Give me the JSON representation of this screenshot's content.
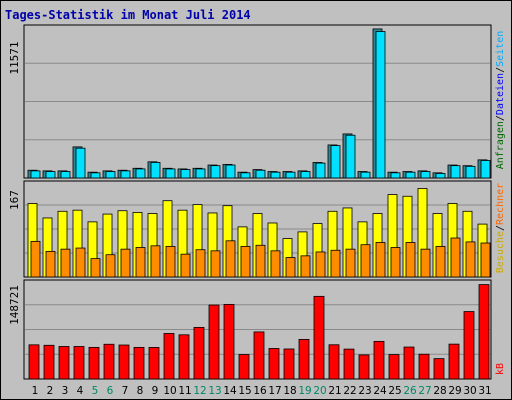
{
  "title": "Tages-Statistik im Monat Juli 2014",
  "colors": {
    "background": "#c0c0c0",
    "title_text": "#0000aa",
    "grid": "#8a8a8a",
    "anfragen": "#006600",
    "dateien": "#0000ff",
    "seiten": "#00aaff",
    "besuche": "#ccaa00",
    "rechner": "#ff6600",
    "kb": "#ff0000",
    "weekend_label": "#008866",
    "normal_label": "#000000",
    "bar_hits_back": "#2b8a95",
    "bar_files": "#00e0ff",
    "bar_visits": "#ffff00",
    "bar_sites": "#ff8c00",
    "bar_kb": "#ff0000"
  },
  "right_labels": {
    "top": [
      {
        "text": "Anfragen",
        "color_key": "anfragen"
      },
      {
        "text": "/",
        "color_key": "normal_label"
      },
      {
        "text": "Dateien",
        "color_key": "dateien"
      },
      {
        "text": "/",
        "color_key": "normal_label"
      },
      {
        "text": "Seiten",
        "color_key": "seiten"
      }
    ],
    "middle": [
      {
        "text": "Besuche",
        "color_key": "besuche"
      },
      {
        "text": "/",
        "color_key": "normal_label"
      },
      {
        "text": "Rechner",
        "color_key": "rechner"
      }
    ],
    "bottom": [
      {
        "text": "kB",
        "color_key": "kb"
      }
    ]
  },
  "chart_data": {
    "type": "bar",
    "title": "Tages-Statistik im Monat Juli 2014",
    "categories": [
      "1",
      "2",
      "3",
      "4",
      "5",
      "6",
      "7",
      "8",
      "9",
      "10",
      "11",
      "12",
      "13",
      "14",
      "15",
      "16",
      "17",
      "18",
      "19",
      "20",
      "21",
      "22",
      "23",
      "24",
      "25",
      "26",
      "27",
      "28",
      "29",
      "30",
      "31"
    ],
    "weekend_days": [
      "5",
      "6",
      "12",
      "13",
      "19",
      "20",
      "26",
      "27"
    ],
    "panels": [
      {
        "name": "hits",
        "ymax_label": "11571",
        "ylim": [
          0,
          11571
        ],
        "series": [
          {
            "name": "Anfragen",
            "values": [
              600,
              550,
              550,
              2400,
              450,
              550,
              600,
              750,
              1250,
              750,
              700,
              750,
              1000,
              1050,
              450,
              650,
              500,
              500,
              550,
              1200,
              2550,
              3400,
              500,
              11500,
              450,
              500,
              550,
              400,
              1000,
              950,
              1400
            ]
          },
          {
            "name": "Dateien",
            "values": [
              550,
              500,
              500,
              2300,
              400,
              500,
              550,
              700,
              1200,
              700,
              650,
              700,
              950,
              1000,
              400,
              600,
              450,
              450,
              500,
              1150,
              2500,
              3300,
              450,
              11300,
              400,
              450,
              500,
              350,
              950,
              900,
              1350
            ]
          }
        ]
      },
      {
        "name": "visits",
        "ymax_label": "167",
        "ylim": [
          0,
          167
        ],
        "series": [
          {
            "name": "Besuche",
            "values": [
              132,
              106,
              118,
              120,
              99,
              113,
              119,
              116,
              114,
              137,
              120,
              130,
              115,
              128,
              90,
              114,
              97,
              69,
              81,
              96,
              118,
              124,
              99,
              114,
              148,
              145,
              159,
              114,
              132,
              118,
              95
            ]
          },
          {
            "name": "Rechner",
            "values": [
              64,
              46,
              50,
              52,
              33,
              40,
              50,
              53,
              56,
              55,
              41,
              49,
              47,
              65,
              55,
              57,
              47,
              35,
              38,
              45,
              48,
              50,
              58,
              62,
              53,
              62,
              50,
              55,
              70,
              63,
              61
            ]
          }
        ]
      },
      {
        "name": "kb",
        "ymax_label": "148721",
        "ylim": [
          0,
          148721
        ],
        "series": [
          {
            "name": "kB",
            "values": [
              53500,
              52800,
              50900,
              50900,
              49500,
              54400,
              53200,
              49500,
              49400,
              71300,
              69200,
              80800,
              115800,
              116800,
              38300,
              73700,
              47800,
              47000,
              62000,
              129400,
              53600,
              46800,
              37700,
              58900,
              38200,
              50000,
              38800,
              31900,
              54600,
              105600,
              147800
            ]
          }
        ]
      }
    ]
  }
}
